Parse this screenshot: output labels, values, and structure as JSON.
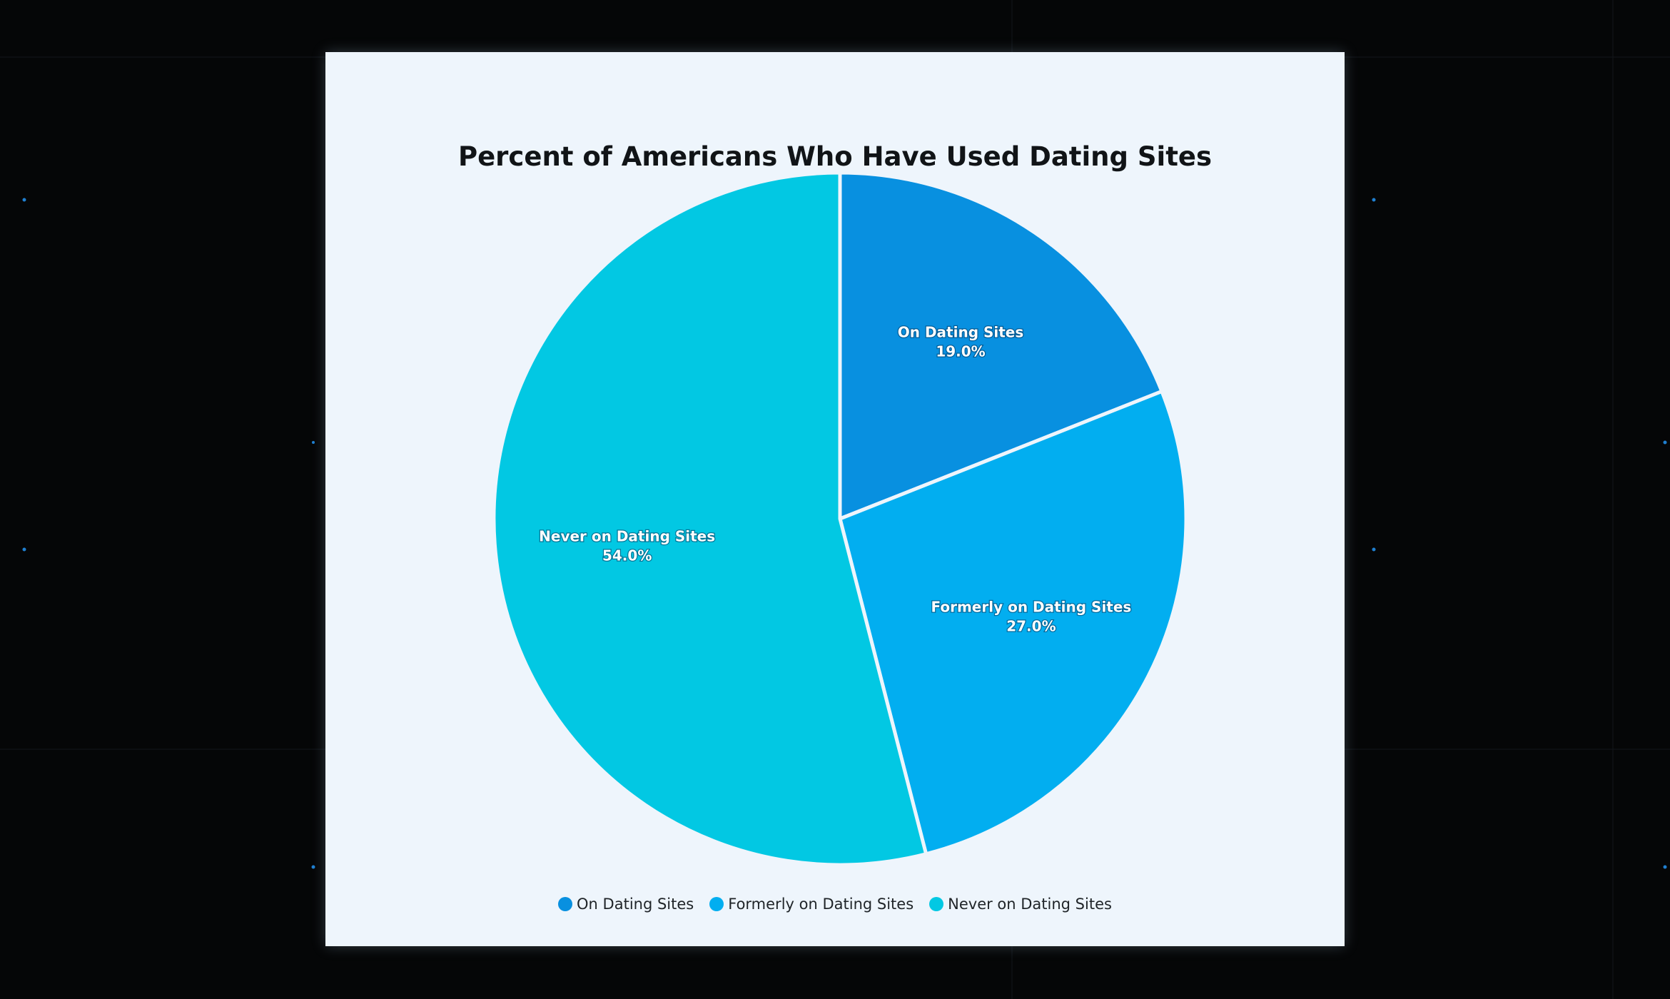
{
  "chart_data": {
    "type": "pie",
    "title": "Percent of Americans Who Have Used Dating Sites",
    "categories": [
      "On Dating Sites",
      "Formerly on Dating Sites",
      "Never on Dating Sites"
    ],
    "values": [
      19.0,
      27.0,
      54.0
    ],
    "value_labels": [
      "19.0%",
      "27.0%",
      "54.0%"
    ],
    "colors": [
      "#0890e0",
      "#02aef0",
      "#02c8e3"
    ],
    "legend": {
      "position": "bottom",
      "items": [
        {
          "label": "On Dating Sites",
          "color": "#0890e0"
        },
        {
          "label": "Formerly on Dating Sites",
          "color": "#02aef0"
        },
        {
          "label": "Never on Dating Sites",
          "color": "#02c8e3"
        }
      ]
    },
    "start": "12 o'clock",
    "direction": "clockwise"
  }
}
